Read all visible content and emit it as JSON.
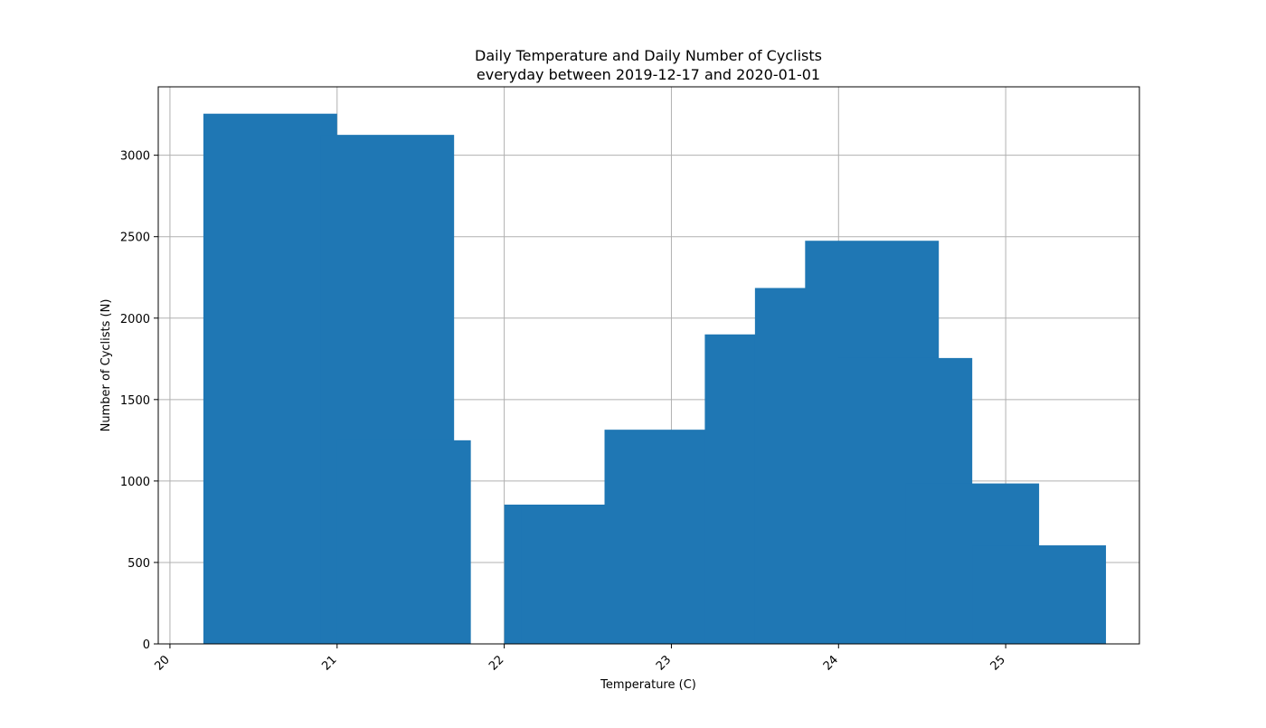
{
  "chart_data": {
    "type": "bar",
    "title": "Daily Temperature and Daily Number of Cyclists",
    "subtitle": "everyday between 2019-12-17 and 2020-01-01",
    "xlabel": "Temperature (C)",
    "ylabel": "Number of Cyclists (N)",
    "xlim": [
      19.93,
      25.8
    ],
    "ylim": [
      0,
      3420
    ],
    "xticks": [
      "20",
      "21",
      "22",
      "23",
      "24",
      "25"
    ],
    "yticks": [
      "0",
      "500",
      "1000",
      "1500",
      "2000",
      "2500",
      "3000"
    ],
    "grid": true,
    "bar_color": "#1f77b4",
    "bars": [
      {
        "x": 20.6,
        "value": 3255
      },
      {
        "x": 21.3,
        "value": 3125
      },
      {
        "x": 21.4,
        "value": 1250
      },
      {
        "x": 22.4,
        "value": 855
      },
      {
        "x": 22.5,
        "value": 845
      },
      {
        "x": 23.0,
        "value": 1315
      },
      {
        "x": 23.6,
        "value": 1900
      },
      {
        "x": 23.9,
        "value": 2185
      },
      {
        "x": 24.2,
        "value": 2475
      },
      {
        "x": 24.4,
        "value": 1755
      },
      {
        "x": 24.8,
        "value": 985
      },
      {
        "x": 25.2,
        "value": 605
      }
    ]
  }
}
